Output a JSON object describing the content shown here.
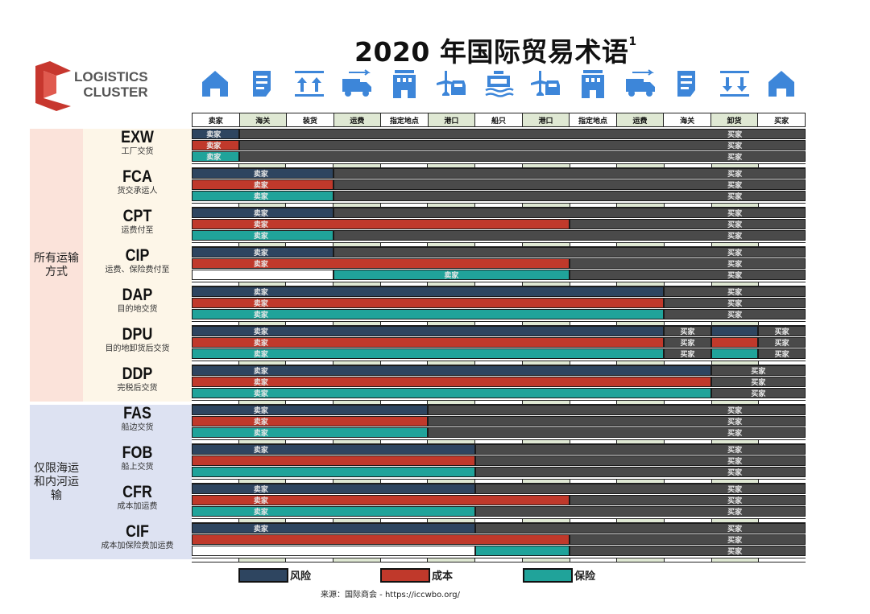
{
  "title": "2020 年国际贸易术语",
  "title_sup": "1",
  "logo": {
    "line1": "LOGISTICS",
    "line2": "CLUSTER",
    "color": "#c7372e"
  },
  "icons": [
    "house-icon",
    "document-icon",
    "loading-icon",
    "truck-icon",
    "terminal-icon",
    "plane-car-icon",
    "ship-icon",
    "plane-car-icon",
    "terminal-icon",
    "truck-icon",
    "document-icon",
    "unloading-icon",
    "house-icon"
  ],
  "columns": [
    "卖家",
    "海关",
    "装货",
    "运费",
    "指定地点",
    "港口",
    "船只",
    "港口",
    "指定地点",
    "运费",
    "海关",
    "卸货",
    "买家"
  ],
  "groups": [
    {
      "label": "所有运输方式",
      "lines": [
        "所有运输",
        "方式"
      ],
      "color": "#fbe3da"
    },
    {
      "label": "仅限海运和内河运输",
      "lines": [
        "仅限海运",
        "和内河运",
        "输"
      ],
      "color": "#dde2f2"
    }
  ],
  "colors": {
    "risk": "#2e4560",
    "cost": "#c0392b",
    "insurance": "#20a39a",
    "buyer": "#4a4a4a",
    "termbg": "#fdf6e8"
  },
  "labels": {
    "seller": "卖家",
    "buyer": "买家"
  },
  "terms": [
    {
      "code": "EXW",
      "name": "工厂交货",
      "risk": 1,
      "cost": 1,
      "ins": [
        0,
        1
      ],
      "buyer_label": "买家"
    },
    {
      "code": "FCA",
      "name": "货交承运人",
      "risk": 3,
      "cost": 3,
      "ins": [
        0,
        3
      ],
      "buyer_label": "买家"
    },
    {
      "code": "CPT",
      "name": "运费付至",
      "risk": 3,
      "cost": 8,
      "ins": [
        0,
        3
      ],
      "buyer_label": "买家"
    },
    {
      "code": "CIP",
      "name": "运费、保险费付至",
      "risk": 3,
      "cost": 8,
      "ins": [
        3,
        8
      ],
      "ins_label": "卖家",
      "buyer_label": "买家"
    },
    {
      "code": "DAP",
      "name": "目的地交货",
      "risk": 10,
      "cost": 10,
      "ins": [
        0,
        10
      ],
      "buyer_label": "买家"
    },
    {
      "code": "DPU",
      "name": "目的地卸货后交货",
      "risk": 10,
      "cost": 10,
      "ins": [
        0,
        10
      ],
      "split": true,
      "buyer_label": "买家"
    },
    {
      "code": "DDP",
      "name": "完税后交货",
      "risk": 11,
      "cost": 11,
      "ins": [
        0,
        11
      ],
      "buyer_label": "买家"
    },
    {
      "code": "FAS",
      "name": "船边交货",
      "risk": 5,
      "cost": 5,
      "ins": [
        0,
        5
      ],
      "buyer_label": "买家"
    },
    {
      "code": "FOB",
      "name": "船上交货",
      "risk": 6,
      "cost": 6,
      "ins": [
        0,
        6
      ],
      "no_cost_label": true,
      "no_ins_label": true,
      "buyer_label": "买家"
    },
    {
      "code": "CFR",
      "name": "成本加运费",
      "risk": 6,
      "cost": 8,
      "ins": [
        0,
        6
      ],
      "buyer_label": "买家"
    },
    {
      "code": "CIF",
      "name": "成本加保险费加运费",
      "risk": 6,
      "cost": 8,
      "ins": [
        6,
        8
      ],
      "no_cost_label": true,
      "no_ins_label": true,
      "buyer_label": "买家"
    }
  ],
  "legend": [
    {
      "label": "风险",
      "color": "#2e4560"
    },
    {
      "label": "成本",
      "color": "#c0392b"
    },
    {
      "label": "保险",
      "color": "#20a39a"
    }
  ],
  "source": "来源：国际商会 -  https://iccwbo.org/"
}
